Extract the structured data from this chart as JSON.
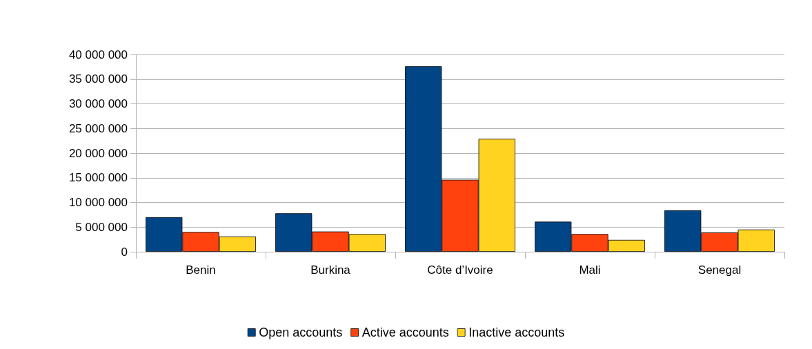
{
  "chart_data": {
    "type": "bar",
    "categories": [
      "Benin",
      "Burkina",
      "Côte d’Ivoire",
      "Mali",
      "Senegal"
    ],
    "series": [
      {
        "name": "Open accounts",
        "color": "#004586",
        "values": [
          7000000,
          7800000,
          37600000,
          6100000,
          8400000
        ]
      },
      {
        "name": "Active accounts",
        "color": "#ff420e",
        "values": [
          4000000,
          4100000,
          14600000,
          3600000,
          3900000
        ]
      },
      {
        "name": "Inactive accounts",
        "color": "#ffd320",
        "values": [
          3100000,
          3600000,
          22900000,
          2400000,
          4500000
        ]
      }
    ],
    "ylim": [
      0,
      40000000
    ],
    "yticks": [
      {
        "value": 0,
        "label": "0"
      },
      {
        "value": 5000000,
        "label": "5 000 000"
      },
      {
        "value": 10000000,
        "label": "10 000 000"
      },
      {
        "value": 15000000,
        "label": "15 000 000"
      },
      {
        "value": 20000000,
        "label": "20 000 000"
      },
      {
        "value": 25000000,
        "label": "25 000 000"
      },
      {
        "value": 30000000,
        "label": "30 000 000"
      },
      {
        "value": 35000000,
        "label": "35 000 000"
      },
      {
        "value": 40000000,
        "label": "40 000 000"
      }
    ],
    "grid": "y",
    "legend": "bottom"
  }
}
